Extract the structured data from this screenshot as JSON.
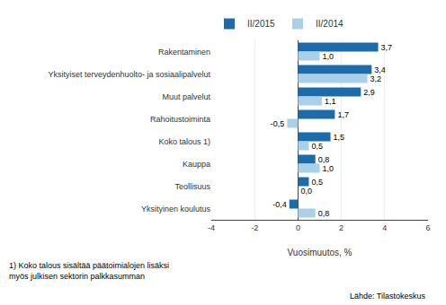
{
  "chart_data": {
    "type": "bar",
    "orientation": "horizontal",
    "categories": [
      "Rakentaminen",
      "Yksityiset terveydenhuolto- ja sosiaalipalvelut",
      "Muut palvelut",
      "Rahoitustoiminta",
      "Koko talous 1)",
      "Kauppa",
      "Teollisuus",
      "Yksityinen koulutus"
    ],
    "series": [
      {
        "name": "II/2015",
        "color": "#1C6BAA",
        "values": [
          3.7,
          3.4,
          2.9,
          1.7,
          1.5,
          0.8,
          0.5,
          -0.4
        ],
        "value_labels": [
          "3,7",
          "3,4",
          "2,9",
          "1,7",
          "1,5",
          "0,8",
          "0,5",
          "-0,4"
        ]
      },
      {
        "name": "II/2014",
        "color": "#A8D0E8",
        "values": [
          1.0,
          3.2,
          1.1,
          -0.5,
          0.5,
          1.0,
          0.0,
          0.8
        ],
        "value_labels": [
          "1,0",
          "3,2",
          "1,1",
          "-0,5",
          "0,5",
          "1,0",
          "0,0",
          "0,8"
        ]
      }
    ],
    "xlabel": "Vuosimuutos, %",
    "xlim": [
      -4,
      6
    ],
    "xticks": [
      -4,
      -2,
      0,
      2,
      4,
      6
    ],
    "grid": true,
    "legend": "top",
    "data_labels": true,
    "annotations": [
      "1) Koko talous sisältää päätoimialojen lisäksi",
      "myös julkisen sektorin palkkasumman",
      "Lähde: Tilastokeskus"
    ]
  }
}
